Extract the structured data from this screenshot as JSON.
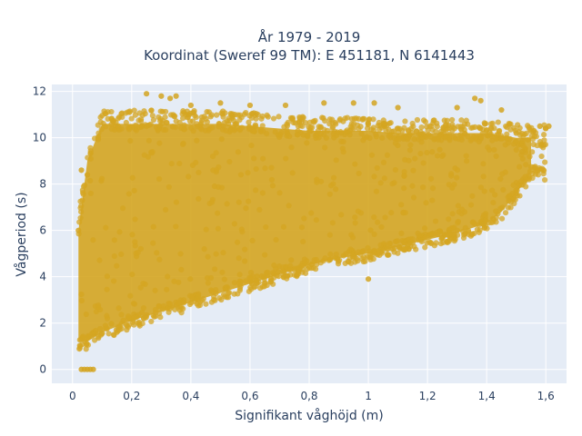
{
  "chart_data": {
    "type": "scatter",
    "title_lines": [
      "År 1979 - 2019",
      "Koordinat (Sweref 99 TM): E 451181, N 6141443"
    ],
    "xlabel": "Signifikant våghöjd (m)",
    "ylabel": "Vågperiod (s)",
    "xlim": [
      -0.07,
      1.67
    ],
    "ylim": [
      -0.6,
      12.3
    ],
    "x_ticks": [
      0,
      0.2,
      0.4,
      0.6,
      0.8,
      1,
      1.2,
      1.4,
      1.6
    ],
    "x_tick_labels": [
      "0",
      "0,2",
      "0,4",
      "0,6",
      "0,8",
      "1",
      "1,2",
      "1,4",
      "1,6"
    ],
    "y_ticks": [
      0,
      2,
      4,
      6,
      8,
      10,
      12
    ],
    "y_tick_labels": [
      "0",
      "2",
      "4",
      "6",
      "8",
      "10",
      "12"
    ],
    "grid": true,
    "legend": "none",
    "plot_background": "#e5ecf6",
    "marker_color": "#d4a521",
    "envelope": {
      "x": [
        0.02,
        0.05,
        0.1,
        0.2,
        0.3,
        0.4,
        0.5,
        0.6,
        0.7,
        0.8,
        0.9,
        1.0,
        1.1,
        1.2,
        1.3,
        1.4,
        1.45,
        1.5,
        1.55
      ],
      "y_low": [
        1.2,
        1.2,
        1.6,
        2.1,
        2.5,
        2.9,
        3.3,
        3.7,
        4.1,
        4.5,
        4.8,
        5.0,
        5.3,
        5.6,
        5.9,
        6.3,
        6.8,
        7.6,
        8.5
      ],
      "y_high": [
        6.0,
        9.0,
        10.6,
        10.6,
        10.6,
        10.6,
        10.6,
        10.5,
        10.4,
        10.3,
        10.3,
        10.3,
        10.2,
        10.2,
        10.2,
        10.2,
        10.1,
        10.0,
        10.0
      ]
    },
    "points": [
      {
        "x": 0.05,
        "y": 0
      },
      {
        "x": 0.06,
        "y": 0
      },
      {
        "x": 0.07,
        "y": 0
      },
      {
        "x": 0.04,
        "y": 0
      },
      {
        "x": 0.03,
        "y": 0
      },
      {
        "x": 0.02,
        "y": 6.0
      },
      {
        "x": 0.03,
        "y": 8.6
      },
      {
        "x": 0.05,
        "y": 8.4
      },
      {
        "x": 0.25,
        "y": 11.9
      },
      {
        "x": 0.3,
        "y": 11.8
      },
      {
        "x": 0.33,
        "y": 11.7
      },
      {
        "x": 0.35,
        "y": 11.8
      },
      {
        "x": 0.4,
        "y": 11.4
      },
      {
        "x": 0.5,
        "y": 11.5
      },
      {
        "x": 0.6,
        "y": 11.4
      },
      {
        "x": 0.72,
        "y": 11.4
      },
      {
        "x": 0.85,
        "y": 11.5
      },
      {
        "x": 0.95,
        "y": 11.5
      },
      {
        "x": 1.02,
        "y": 11.5
      },
      {
        "x": 1.1,
        "y": 11.3
      },
      {
        "x": 1.3,
        "y": 11.3
      },
      {
        "x": 1.36,
        "y": 11.7
      },
      {
        "x": 1.38,
        "y": 11.6
      },
      {
        "x": 1.45,
        "y": 11.2
      },
      {
        "x": 1.56,
        "y": 10.3
      },
      {
        "x": 1.58,
        "y": 10.5
      },
      {
        "x": 1.6,
        "y": 10.4
      },
      {
        "x": 1.61,
        "y": 10.5
      },
      {
        "x": 1.0,
        "y": 3.9
      },
      {
        "x": 1.52,
        "y": 9.4
      },
      {
        "x": 1.5,
        "y": 10.2
      }
    ]
  }
}
